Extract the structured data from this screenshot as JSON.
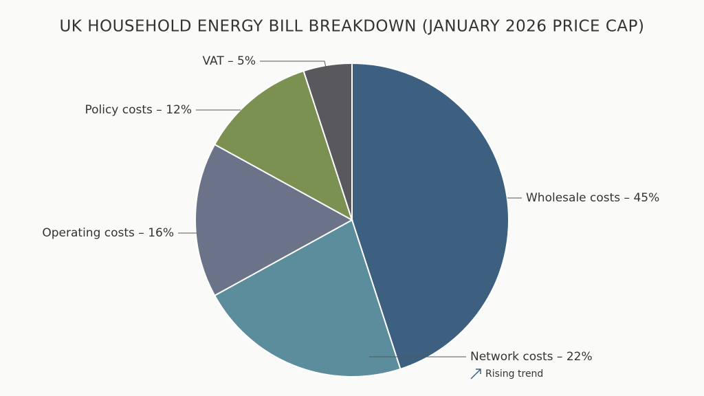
{
  "chart_data": {
    "type": "pie",
    "title": "UK HOUSEHOLD ENERGY BILL BREAKDOWN (JANUARY 2026 PRICE CAP)",
    "values": [
      45,
      22,
      16,
      12,
      5
    ],
    "value_labels": [
      "Wholesale costs – 45%",
      "Network costs – 22%",
      "Operating costs – 16%",
      "Policy costs – 12%",
      "VAT – 5%"
    ],
    "colors": [
      "#3d5f80",
      "#5b8d9c",
      "#6b7388",
      "#7a9152",
      "#59595d"
    ],
    "annotation": "Rising trend"
  }
}
